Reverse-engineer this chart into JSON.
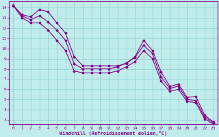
{
  "xlabel": "Windchill (Refroidissement éolien,°C)",
  "bg_color": "#c0ecec",
  "grid_color": "#98d4d4",
  "line_color": "#880088",
  "xlim": [
    -0.5,
    23.5
  ],
  "ylim": [
    2.6,
    14.6
  ],
  "xticks": [
    0,
    1,
    2,
    3,
    4,
    5,
    6,
    7,
    8,
    9,
    10,
    11,
    12,
    13,
    14,
    15,
    16,
    17,
    18,
    19,
    20,
    21,
    22,
    23
  ],
  "yticks": [
    3,
    4,
    5,
    6,
    7,
    8,
    9,
    10,
    11,
    12,
    13,
    14
  ],
  "series": [
    [
      14.2,
      13.3,
      13.1,
      13.8,
      13.6,
      12.5,
      11.5,
      9.2,
      8.3,
      8.3,
      8.3,
      8.3,
      8.3,
      8.5,
      9.2,
      10.8,
      9.8,
      7.7,
      6.3,
      6.5,
      5.2,
      5.3,
      3.5,
      2.8
    ],
    [
      14.2,
      13.2,
      12.8,
      13.2,
      12.6,
      11.8,
      10.8,
      8.5,
      8.0,
      8.0,
      8.0,
      8.0,
      8.2,
      8.6,
      9.1,
      10.3,
      9.5,
      7.2,
      6.1,
      6.3,
      5.0,
      4.9,
      3.3,
      2.7
    ],
    [
      14.2,
      13.0,
      12.5,
      12.5,
      11.8,
      10.8,
      9.8,
      7.8,
      7.6,
      7.6,
      7.6,
      7.6,
      7.8,
      8.2,
      8.7,
      9.8,
      9.0,
      6.8,
      5.8,
      6.0,
      4.8,
      4.7,
      3.1,
      2.6
    ]
  ]
}
